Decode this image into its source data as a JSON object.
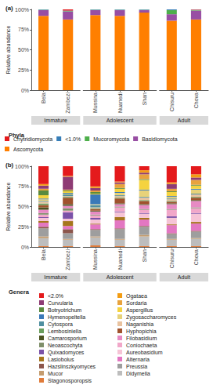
{
  "chart_data": [
    {
      "type": "bar",
      "title": "(a)",
      "stacked": true,
      "grid": false,
      "legend": "bottom",
      "ylabel": "Relative abundance",
      "legend_title": "Phyla",
      "categories": [
        "Bela",
        "Zambezi",
        "Mussina",
        "Nuanedi",
        "Shan",
        "Chisuru",
        "Chova"
      ],
      "facets": [
        "Immature",
        "Immature",
        "Adolescent",
        "Adolescent",
        "Adolescent",
        "Adult",
        "Adult"
      ],
      "ylim": [
        0,
        100
      ],
      "yticks": [
        {
          "value": 0,
          "label": "0%"
        },
        {
          "value": 25,
          "label": "25%"
        },
        {
          "value": 50,
          "label": "50%"
        },
        {
          "value": 75,
          "label": "75%"
        },
        {
          "value": 100,
          "label": "100%"
        }
      ],
      "series": [
        {
          "name": "Chytridiomycota",
          "color": "#e41a1c",
          "values": [
            0,
            1.5,
            0,
            0,
            0,
            0,
            0.5
          ]
        },
        {
          "name": "<1.0%",
          "color": "#377eb8",
          "values": [
            0.5,
            0.5,
            0.5,
            0.5,
            0.5,
            1,
            0.5
          ]
        },
        {
          "name": "Mucoromycota",
          "color": "#4daf4a",
          "values": [
            0.5,
            0.5,
            0.5,
            0.5,
            0.5,
            5,
            0.5
          ]
        },
        {
          "name": "Basidiomycota",
          "color": "#984ea3",
          "values": [
            7,
            10,
            6,
            7,
            3,
            8,
            11
          ]
        },
        {
          "name": "Ascomycota",
          "color": "#ff7f00",
          "values": [
            92,
            87.5,
            93,
            92,
            96,
            86,
            87.5
          ]
        }
      ]
    },
    {
      "type": "bar",
      "title": "(b)",
      "stacked": true,
      "grid": false,
      "legend": "bottom",
      "ylabel": "Relative abundance",
      "legend_title": "Genera",
      "categories": [
        "Bela",
        "Zambezi",
        "Mussina",
        "Nuanedi",
        "Shan",
        "Chisuru",
        "Chova"
      ],
      "facets": [
        "Immature",
        "Immature",
        "Adolescent",
        "Adolescent",
        "Adolescent",
        "Adult",
        "Adult"
      ],
      "ylim": [
        0,
        100
      ],
      "yticks": [
        {
          "value": 0,
          "label": "0%"
        },
        {
          "value": 25,
          "label": "25%"
        },
        {
          "value": 50,
          "label": "50%"
        },
        {
          "value": 75,
          "label": "75%"
        },
        {
          "value": 100,
          "label": "100%"
        }
      ],
      "series": [
        {
          "name": "<2.0%",
          "color": "#e41a1c",
          "values": [
            22,
            12,
            25,
            19,
            5,
            20,
            10
          ]
        },
        {
          "name": "Ogataea",
          "color": "#f39c12",
          "values": [
            2,
            1,
            2,
            1,
            3,
            2,
            4
          ]
        },
        {
          "name": "Curvularia",
          "color": "#8e3b74",
          "values": [
            4,
            16,
            3,
            2,
            2,
            6,
            3
          ]
        },
        {
          "name": "Sordaria",
          "color": "#e8a33d",
          "values": [
            2,
            1,
            2,
            5,
            6,
            3,
            6
          ]
        },
        {
          "name": "Botryotrichum",
          "color": "#5a8a3e",
          "values": [
            6,
            1,
            2,
            1,
            1,
            1,
            1
          ]
        },
        {
          "name": "Aspergillus",
          "color": "#f5d33f",
          "values": [
            4,
            2,
            1,
            4,
            12,
            5,
            4
          ]
        },
        {
          "name": "Hymenopeltella",
          "color": "#3a79b8",
          "values": [
            1,
            1,
            12,
            1,
            1,
            1,
            1
          ]
        },
        {
          "name": "Zygosaccharomyces",
          "color": "#e7d27a",
          "values": [
            2,
            1,
            1,
            3,
            8,
            2,
            5
          ]
        },
        {
          "name": "Cytospora",
          "color": "#4f8fa0",
          "values": [
            1,
            2,
            3,
            1,
            1,
            1,
            1
          ]
        },
        {
          "name": "Naganishia",
          "color": "#e9c3a0",
          "values": [
            2,
            1,
            1,
            2,
            3,
            2,
            3
          ]
        },
        {
          "name": "Lembosiniella",
          "color": "#6a9e5c",
          "values": [
            2,
            1,
            1,
            1,
            1,
            1,
            1
          ]
        },
        {
          "name": "Hyphopichia",
          "color": "#a0522d",
          "values": [
            3,
            8,
            2,
            6,
            4,
            2,
            3
          ]
        },
        {
          "name": "Camarosporium",
          "color": "#4b5320",
          "values": [
            3,
            2,
            1,
            1,
            1,
            1,
            1
          ]
        },
        {
          "name": "Filobasidium",
          "color": "#e78ac3",
          "values": [
            4,
            3,
            4,
            3,
            5,
            6,
            8
          ]
        },
        {
          "name": "Neoascochyta",
          "color": "#7f8f6a",
          "values": [
            2,
            3,
            1,
            1,
            1,
            1,
            1
          ]
        },
        {
          "name": "Coniochaeta",
          "color": "#f1a7c9",
          "values": [
            3,
            2,
            3,
            5,
            4,
            8,
            6
          ]
        },
        {
          "name": "Quixadomyces",
          "color": "#7b52a8",
          "values": [
            1,
            8,
            2,
            1,
            1,
            2,
            1
          ]
        },
        {
          "name": "Aureobasidium",
          "color": "#f6c4d6",
          "values": [
            4,
            3,
            5,
            6,
            5,
            8,
            10
          ]
        },
        {
          "name": "Lasiobolus",
          "color": "#a6761d",
          "values": [
            2,
            6,
            1,
            4,
            2,
            1,
            2
          ]
        },
        {
          "name": "Alternaria",
          "color": "#e377c2",
          "values": [
            5,
            4,
            6,
            10,
            8,
            10,
            9
          ]
        },
        {
          "name": "Hazslinszkyomyces",
          "color": "#8c564b",
          "values": [
            2,
            5,
            1,
            1,
            1,
            1,
            1
          ]
        },
        {
          "name": "Preussia",
          "color": "#9e9e9e",
          "values": [
            10,
            7,
            8,
            12,
            10,
            6,
            8
          ]
        },
        {
          "name": "Mucor",
          "color": "#c49c6e",
          "values": [
            2,
            1,
            1,
            1,
            2,
            1,
            1
          ]
        },
        {
          "name": "Didymella",
          "color": "#bdbdbd",
          "values": [
            10,
            8,
            10,
            8,
            12,
            8,
            9
          ]
        },
        {
          "name": "Stagonosporopsis",
          "color": "#e07b39",
          "values": [
            1,
            1,
            2,
            1,
            1,
            1,
            1
          ]
        }
      ]
    }
  ]
}
